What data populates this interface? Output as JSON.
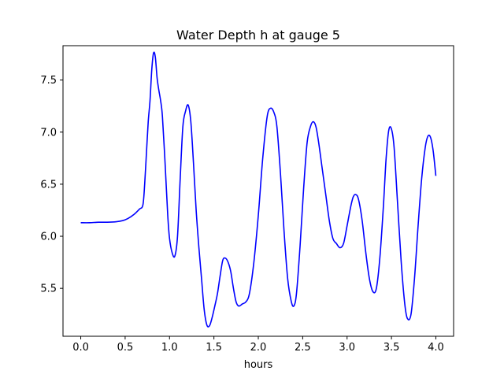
{
  "chart_data": {
    "type": "line",
    "title": "Water Depth h at gauge 5",
    "xlabel": "hours",
    "ylabel": "",
    "xlim": [
      -0.2,
      4.2
    ],
    "ylim": [
      5.04,
      7.83
    ],
    "xticks": [
      0.0,
      0.5,
      1.0,
      1.5,
      2.0,
      2.5,
      3.0,
      3.5,
      4.0
    ],
    "xtick_labels": [
      "0.0",
      "0.5",
      "1.0",
      "1.5",
      "2.0",
      "2.5",
      "3.0",
      "3.5",
      "4.0"
    ],
    "yticks": [
      5.5,
      6.0,
      6.5,
      7.0,
      7.5
    ],
    "ytick_labels": [
      "5.5",
      "6.0",
      "6.5",
      "7.0",
      "7.5"
    ],
    "grid": false,
    "series": [
      {
        "color": "#0000ff",
        "x": [
          0.0,
          0.1,
          0.2,
          0.3,
          0.4,
          0.47,
          0.53,
          0.6,
          0.66,
          0.7,
          0.72,
          0.74,
          0.76,
          0.78,
          0.8,
          0.82,
          0.84,
          0.86,
          0.88,
          0.9,
          0.92,
          0.95,
          0.98,
          1.0,
          1.03,
          1.06,
          1.09,
          1.12,
          1.15,
          1.18,
          1.21,
          1.24,
          1.27,
          1.3,
          1.33,
          1.36,
          1.39,
          1.42,
          1.45,
          1.48,
          1.51,
          1.54,
          1.57,
          1.6,
          1.63,
          1.66,
          1.69,
          1.72,
          1.75,
          1.78,
          1.82,
          1.86,
          1.9,
          1.95,
          2.0,
          2.05,
          2.1,
          2.14,
          2.18,
          2.21,
          2.25,
          2.29,
          2.33,
          2.37,
          2.4,
          2.43,
          2.47,
          2.51,
          2.55,
          2.59,
          2.62,
          2.65,
          2.68,
          2.72,
          2.76,
          2.8,
          2.84,
          2.88,
          2.92,
          2.96,
          3.0,
          3.04,
          3.07,
          3.1,
          3.13,
          3.17,
          3.21,
          3.25,
          3.29,
          3.33,
          3.37,
          3.41,
          3.44,
          3.47,
          3.5,
          3.53,
          3.57,
          3.61,
          3.65,
          3.68,
          3.72,
          3.76,
          3.8,
          3.84,
          3.88,
          3.91,
          3.94,
          3.97,
          4.0
        ],
        "y": [
          6.13,
          6.13,
          6.135,
          6.135,
          6.14,
          6.15,
          6.17,
          6.21,
          6.26,
          6.3,
          6.5,
          6.8,
          7.1,
          7.3,
          7.6,
          7.76,
          7.72,
          7.52,
          7.4,
          7.3,
          7.15,
          6.7,
          6.2,
          5.98,
          5.84,
          5.81,
          6.0,
          6.55,
          7.05,
          7.2,
          7.26,
          7.1,
          6.7,
          6.25,
          5.9,
          5.6,
          5.3,
          5.15,
          5.14,
          5.22,
          5.33,
          5.45,
          5.62,
          5.77,
          5.79,
          5.75,
          5.66,
          5.5,
          5.37,
          5.33,
          5.35,
          5.37,
          5.45,
          5.75,
          6.2,
          6.75,
          7.15,
          7.23,
          7.18,
          7.05,
          6.6,
          6.05,
          5.6,
          5.38,
          5.33,
          5.45,
          5.9,
          6.45,
          6.9,
          7.06,
          7.1,
          7.05,
          6.9,
          6.65,
          6.4,
          6.15,
          5.98,
          5.93,
          5.89,
          5.93,
          6.1,
          6.28,
          6.38,
          6.4,
          6.35,
          6.15,
          5.85,
          5.6,
          5.47,
          5.5,
          5.8,
          6.3,
          6.75,
          7.02,
          7.03,
          6.85,
          6.3,
          5.75,
          5.35,
          5.21,
          5.25,
          5.6,
          6.1,
          6.55,
          6.85,
          6.96,
          6.95,
          6.82,
          6.58
        ]
      }
    ]
  }
}
